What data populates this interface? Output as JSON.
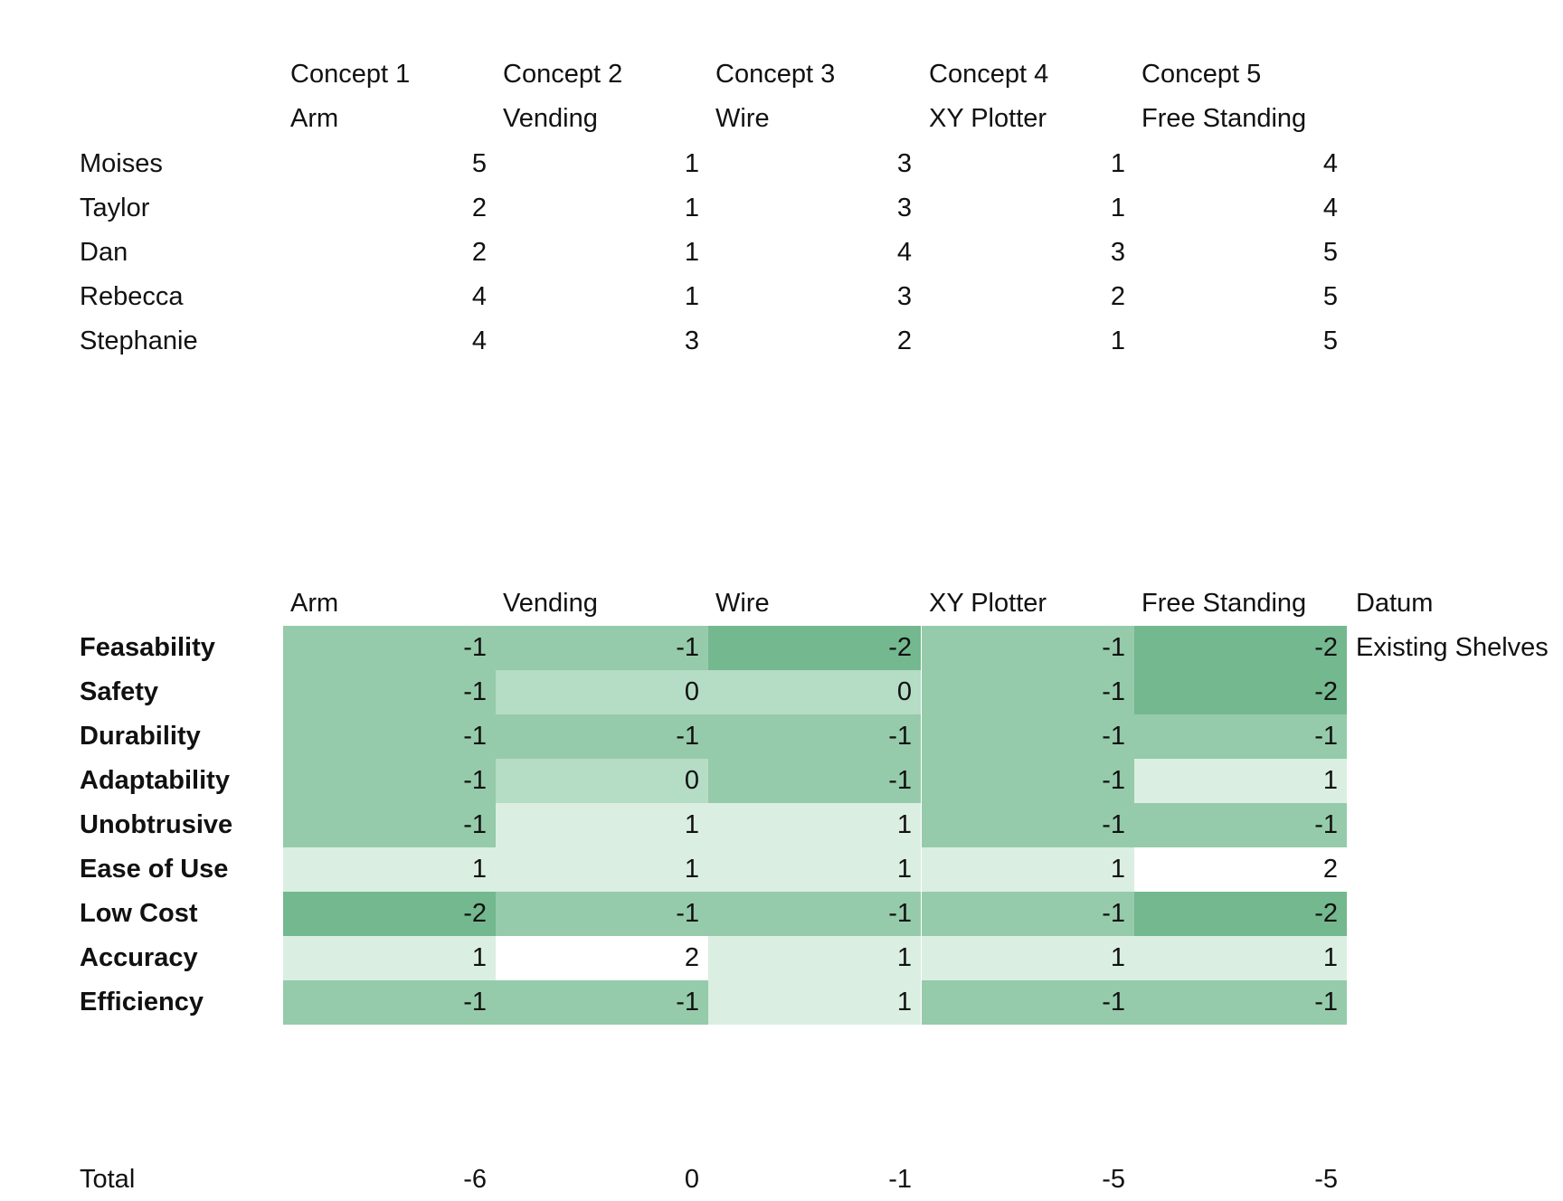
{
  "ranking": {
    "concepts": [
      {
        "number": "Concept 1",
        "name": "Arm"
      },
      {
        "number": "Concept 2",
        "name": "Vending"
      },
      {
        "number": "Concept 3",
        "name": "Wire"
      },
      {
        "number": "Concept 4",
        "name": "XY Plotter"
      },
      {
        "number": "Concept 5",
        "name": "Free Standing"
      }
    ],
    "rows": [
      {
        "name": "Moises",
        "values": [
          "5",
          "1",
          "3",
          "1",
          "4"
        ]
      },
      {
        "name": "Taylor",
        "values": [
          "2",
          "1",
          "3",
          "1",
          "4"
        ]
      },
      {
        "name": "Dan",
        "values": [
          "2",
          "1",
          "4",
          "3",
          "5"
        ]
      },
      {
        "name": "Rebecca",
        "values": [
          "4",
          "1",
          "3",
          "2",
          "5"
        ]
      },
      {
        "name": "Stephanie",
        "values": [
          "4",
          "3",
          "2",
          "1",
          "5"
        ]
      }
    ]
  },
  "matrix": {
    "headers": [
      "Arm",
      "Vending",
      "Wire",
      "XY Plotter",
      "Free Standing"
    ],
    "datum_header": "Datum",
    "datum_value": "Existing Shelves",
    "criteria": [
      {
        "name": "Feasability",
        "values": [
          "-1",
          "-1",
          "-2",
          "-1",
          "-2"
        ]
      },
      {
        "name": "Safety",
        "values": [
          "-1",
          "0",
          "0",
          "-1",
          "-2"
        ]
      },
      {
        "name": "Durability",
        "values": [
          "-1",
          "-1",
          "-1",
          "-1",
          "-1"
        ]
      },
      {
        "name": "Adaptability",
        "values": [
          "-1",
          "0",
          "-1",
          "-1",
          "1"
        ]
      },
      {
        "name": "Unobtrusive",
        "values": [
          "-1",
          "1",
          "1",
          "-1",
          "-1"
        ]
      },
      {
        "name": "Ease of Use",
        "values": [
          "1",
          "1",
          "1",
          "1",
          "2"
        ]
      },
      {
        "name": "Low Cost",
        "values": [
          "-2",
          "-1",
          "-1",
          "-1",
          "-2"
        ]
      },
      {
        "name": "Accuracy",
        "values": [
          "1",
          "2",
          "1",
          "1",
          "1"
        ]
      },
      {
        "name": "Efficiency",
        "values": [
          "-1",
          "-1",
          "1",
          "-1",
          "-1"
        ]
      }
    ],
    "total_label": "Total",
    "totals": [
      "-6",
      "0",
      "-1",
      "-5",
      "-5"
    ]
  },
  "colors": {
    "score_-2": "#74b88f",
    "score_-1": "#95cbaa",
    "score_0": "#b5dcc5",
    "score_1": "#dbeee2",
    "score_2": "#ffffff"
  }
}
